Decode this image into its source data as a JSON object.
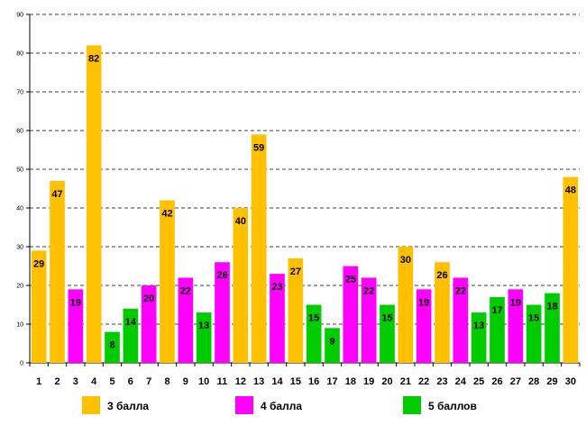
{
  "chart_data": {
    "type": "bar",
    "title": "",
    "xlabel": "",
    "ylabel": "",
    "ylim": [
      0,
      90
    ],
    "yticks": [
      0,
      10,
      20,
      30,
      40,
      50,
      60,
      70,
      80,
      90
    ],
    "grid": true,
    "legend_position": "bottom",
    "categories": [
      "1",
      "2",
      "3",
      "4",
      "5",
      "6",
      "7",
      "8",
      "9",
      "10",
      "11",
      "12",
      "13",
      "14",
      "15",
      "16",
      "17",
      "18",
      "19",
      "20",
      "21",
      "22",
      "23",
      "24",
      "25",
      "26",
      "27",
      "28",
      "29",
      "30"
    ],
    "values": [
      29,
      47,
      19,
      82,
      8,
      14,
      20,
      42,
      22,
      13,
      26,
      40,
      59,
      23,
      27,
      15,
      9,
      25,
      22,
      15,
      30,
      19,
      26,
      22,
      13,
      17,
      19,
      15,
      18,
      48
    ],
    "groups": [
      "3",
      "3",
      "4",
      "3",
      "5",
      "5",
      "4",
      "3",
      "4",
      "5",
      "4",
      "3",
      "3",
      "4",
      "3",
      "5",
      "5",
      "4",
      "4",
      "5",
      "3",
      "4",
      "3",
      "4",
      "5",
      "5",
      "4",
      "5",
      "5",
      "3"
    ],
    "series": [
      {
        "key": "3",
        "name": "3 балла",
        "color": "#FFC000"
      },
      {
        "key": "4",
        "name": "4 балла",
        "color": "#FF00FF"
      },
      {
        "key": "5",
        "name": "5 баллов",
        "color": "#00CC00"
      }
    ]
  }
}
